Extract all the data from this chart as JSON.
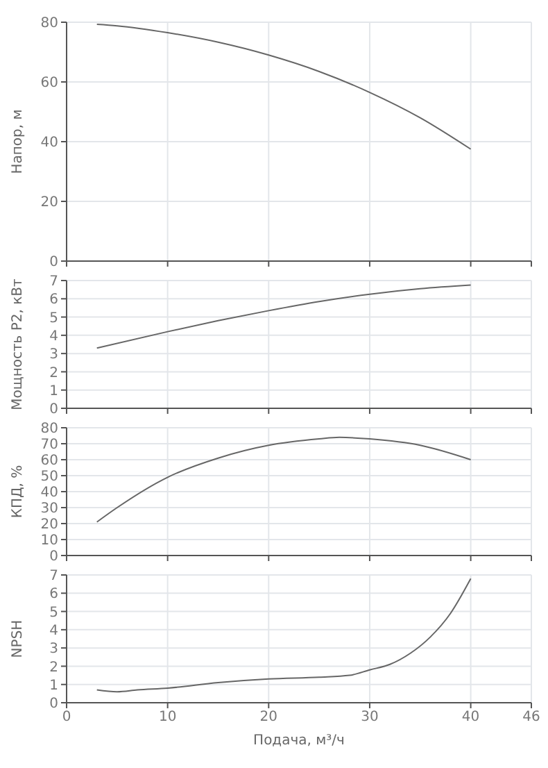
{
  "chart_data": [
    {
      "type": "line",
      "ylabel": "Напор, м",
      "x": [
        3,
        5,
        10,
        15,
        20,
        25,
        30,
        35,
        40
      ],
      "values": [
        79.3,
        78.8,
        76.5,
        73.3,
        69,
        63.5,
        56.5,
        48,
        37.5
      ],
      "color": "#666666",
      "xlim": [
        0,
        46
      ],
      "xticks": [
        0,
        10,
        20,
        30,
        40,
        46
      ],
      "ylim": [
        0,
        80
      ],
      "yticks": [
        0,
        20,
        40,
        60,
        80
      ],
      "grid": true,
      "tick_labels": "y"
    },
    {
      "type": "line",
      "ylabel": "Мощность P2, кВт",
      "x": [
        3,
        10,
        15,
        20,
        25,
        30,
        35,
        40
      ],
      "values": [
        3.3,
        4.2,
        4.8,
        5.35,
        5.85,
        6.25,
        6.55,
        6.75
      ],
      "color": "#666666",
      "xlim": [
        0,
        46
      ],
      "xticks": [
        0,
        10,
        20,
        30,
        40,
        46
      ],
      "ylim": [
        0,
        7
      ],
      "yticks": [
        0,
        1,
        2,
        3,
        4,
        5,
        6,
        7
      ],
      "grid": true,
      "tick_labels": "y"
    },
    {
      "type": "line",
      "ylabel": "КПД, %",
      "x": [
        3,
        5,
        10,
        15,
        20,
        25,
        27,
        30,
        35,
        40
      ],
      "values": [
        21,
        30,
        49,
        61,
        69,
        73,
        74,
        73,
        69,
        60
      ],
      "color": "#666666",
      "xlim": [
        0,
        46
      ],
      "xticks": [
        0,
        10,
        20,
        30,
        40,
        46
      ],
      "ylim": [
        0,
        80
      ],
      "yticks": [
        0,
        10,
        20,
        30,
        40,
        50,
        60,
        70,
        80
      ],
      "grid": true,
      "tick_labels": "y"
    },
    {
      "type": "line",
      "ylabel": "NPSH",
      "xlabel": "Подача, м³/ч",
      "x": [
        3,
        5,
        7,
        10,
        15,
        20,
        25,
        28,
        30,
        32,
        34,
        36,
        38,
        40
      ],
      "values": [
        0.7,
        0.6,
        0.7,
        0.8,
        1.1,
        1.3,
        1.4,
        1.5,
        1.8,
        2.1,
        2.7,
        3.6,
        4.9,
        6.8
      ],
      "color": "#666666",
      "xlim": [
        0,
        46
      ],
      "xticks": [
        0,
        10,
        20,
        30,
        40,
        46
      ],
      "ylim": [
        0,
        7
      ],
      "yticks": [
        0,
        1,
        2,
        3,
        4,
        5,
        6,
        7
      ],
      "grid": true
    }
  ]
}
